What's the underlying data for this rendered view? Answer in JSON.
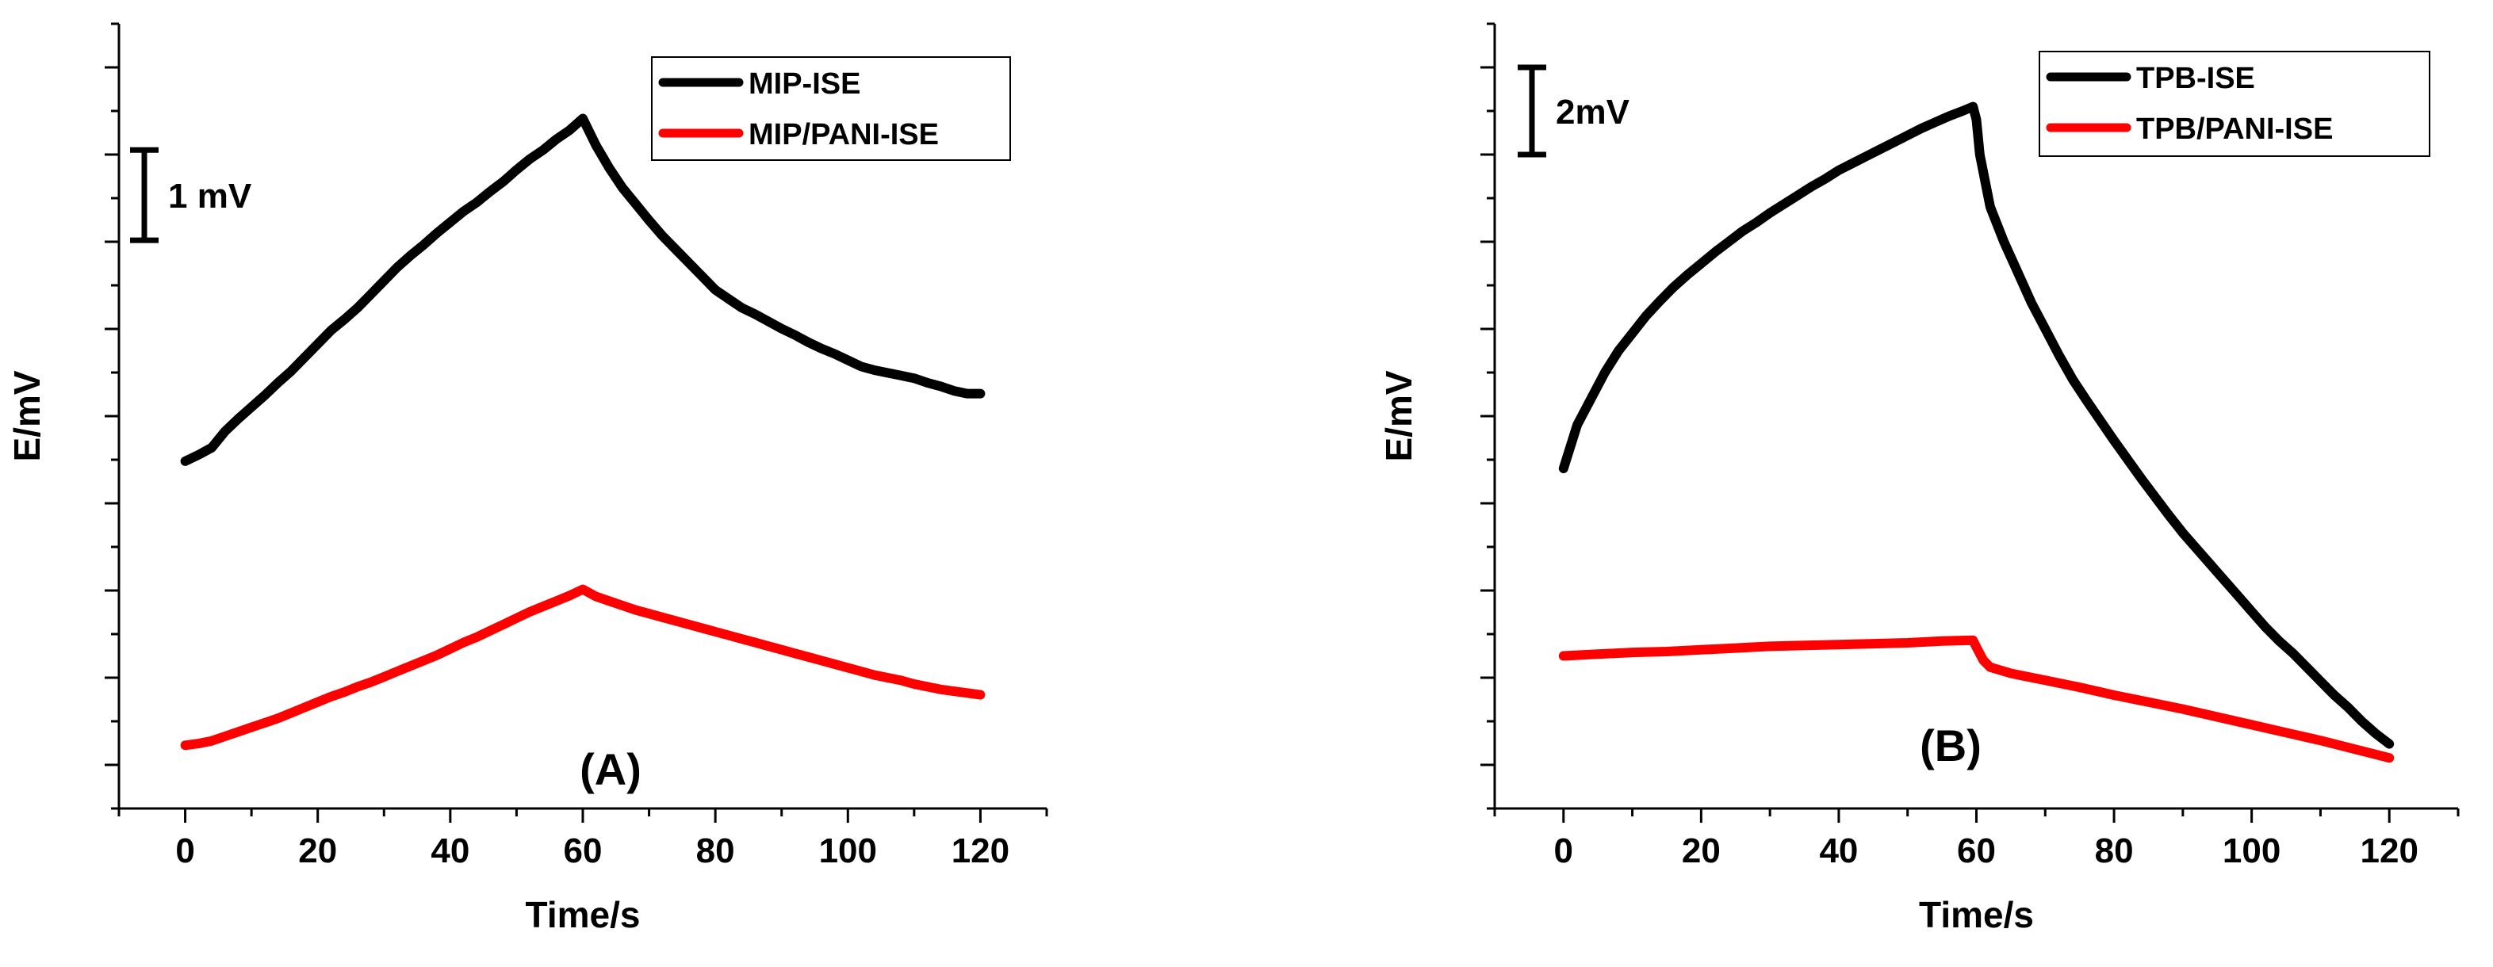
{
  "chart_data": [
    {
      "type": "line",
      "panel_label": "(A)",
      "xlabel": "Time/s",
      "ylabel": "E/mV",
      "xlim": [
        -10,
        130
      ],
      "xticks": [
        0,
        20,
        40,
        60,
        80,
        100,
        120
      ],
      "ylim": [
        -0.5,
        8.2
      ],
      "y_tick_labels_shown": false,
      "scale_bar": {
        "label": "1 mV",
        "from": 5.8,
        "to": 6.8
      },
      "legend_position": "top-right",
      "series": [
        {
          "name": "MIP-ISE",
          "color": "#000000",
          "x": [
            0,
            2,
            4,
            6,
            8,
            10,
            12,
            14,
            16,
            18,
            20,
            22,
            24,
            26,
            28,
            30,
            32,
            34,
            36,
            38,
            40,
            42,
            44,
            46,
            48,
            50,
            52,
            54,
            56,
            58,
            60,
            62,
            64,
            66,
            68,
            70,
            72,
            74,
            76,
            78,
            80,
            82,
            84,
            86,
            88,
            90,
            92,
            94,
            96,
            98,
            100,
            102,
            104,
            106,
            108,
            110,
            112,
            114,
            116,
            118,
            120
          ],
          "values": [
            3.35,
            3.42,
            3.5,
            3.68,
            3.82,
            3.95,
            4.08,
            4.22,
            4.35,
            4.5,
            4.65,
            4.8,
            4.92,
            5.05,
            5.2,
            5.35,
            5.5,
            5.63,
            5.75,
            5.88,
            6.0,
            6.12,
            6.22,
            6.34,
            6.45,
            6.58,
            6.7,
            6.8,
            6.92,
            7.02,
            7.15,
            6.85,
            6.6,
            6.38,
            6.2,
            6.02,
            5.85,
            5.7,
            5.55,
            5.4,
            5.25,
            5.15,
            5.05,
            4.98,
            4.9,
            4.82,
            4.75,
            4.67,
            4.6,
            4.54,
            4.47,
            4.4,
            4.36,
            4.33,
            4.3,
            4.27,
            4.22,
            4.18,
            4.13,
            4.1,
            4.1
          ]
        },
        {
          "name": "MIP/PANI-ISE",
          "color": "#ff0000",
          "x": [
            0,
            2,
            4,
            6,
            8,
            10,
            12,
            14,
            16,
            18,
            20,
            22,
            24,
            26,
            28,
            30,
            32,
            34,
            36,
            38,
            40,
            42,
            44,
            46,
            48,
            50,
            52,
            54,
            56,
            58,
            60,
            62,
            64,
            66,
            68,
            70,
            72,
            74,
            76,
            78,
            80,
            82,
            84,
            86,
            88,
            90,
            92,
            94,
            96,
            98,
            100,
            102,
            104,
            106,
            108,
            110,
            112,
            114,
            116,
            118,
            120
          ],
          "values": [
            0.2,
            0.22,
            0.25,
            0.3,
            0.35,
            0.4,
            0.45,
            0.5,
            0.56,
            0.62,
            0.68,
            0.74,
            0.79,
            0.85,
            0.9,
            0.96,
            1.02,
            1.08,
            1.14,
            1.2,
            1.27,
            1.34,
            1.4,
            1.47,
            1.54,
            1.61,
            1.68,
            1.74,
            1.8,
            1.86,
            1.93,
            1.85,
            1.8,
            1.75,
            1.7,
            1.66,
            1.62,
            1.58,
            1.54,
            1.5,
            1.46,
            1.42,
            1.38,
            1.34,
            1.3,
            1.26,
            1.22,
            1.18,
            1.14,
            1.1,
            1.06,
            1.02,
            0.98,
            0.95,
            0.92,
            0.88,
            0.85,
            0.82,
            0.8,
            0.78,
            0.76
          ]
        }
      ]
    },
    {
      "type": "line",
      "panel_label": "(B)",
      "xlabel": "Time/s",
      "ylabel": "E/mV",
      "xlim": [
        -10,
        130
      ],
      "xticks": [
        0,
        20,
        40,
        60,
        80,
        100,
        120
      ],
      "ylim": [
        -0.5,
        8.5
      ],
      "y_tick_labels_shown": false,
      "scale_bar": {
        "label": "2mV",
        "from": 7.0,
        "to": 8.0
      },
      "legend_position": "top-right",
      "series": [
        {
          "name": "TPB-ISE",
          "color": "#000000",
          "x": [
            0,
            2,
            4,
            6,
            8,
            10,
            12,
            14,
            16,
            18,
            20,
            22,
            24,
            26,
            28,
            30,
            32,
            34,
            36,
            38,
            40,
            42,
            44,
            46,
            48,
            50,
            52,
            54,
            56,
            58,
            59.5,
            60,
            60.5,
            62,
            64,
            66,
            68,
            70,
            72,
            74,
            76,
            78,
            80,
            82,
            84,
            86,
            88,
            90,
            92,
            94,
            96,
            98,
            100,
            102,
            104,
            106,
            108,
            110,
            112,
            114,
            116,
            118,
            120
          ],
          "values": [
            3.4,
            3.9,
            4.2,
            4.5,
            4.75,
            4.95,
            5.15,
            5.32,
            5.48,
            5.62,
            5.75,
            5.88,
            6.0,
            6.12,
            6.22,
            6.33,
            6.43,
            6.53,
            6.63,
            6.72,
            6.82,
            6.9,
            6.98,
            7.06,
            7.14,
            7.22,
            7.3,
            7.37,
            7.44,
            7.5,
            7.55,
            7.4,
            7.0,
            6.4,
            6.0,
            5.65,
            5.3,
            5.0,
            4.7,
            4.42,
            4.18,
            3.95,
            3.72,
            3.5,
            3.28,
            3.07,
            2.86,
            2.66,
            2.48,
            2.3,
            2.12,
            1.94,
            1.76,
            1.58,
            1.42,
            1.28,
            1.12,
            0.96,
            0.8,
            0.66,
            0.5,
            0.36,
            0.24
          ]
        },
        {
          "name": "TPB/PANI-ISE",
          "color": "#ff0000",
          "x": [
            0,
            5,
            10,
            15,
            20,
            25,
            30,
            35,
            40,
            45,
            50,
            55,
            59.5,
            60,
            61,
            62,
            65,
            70,
            75,
            80,
            85,
            90,
            95,
            100,
            105,
            110,
            115,
            120
          ],
          "values": [
            1.25,
            1.27,
            1.29,
            1.3,
            1.32,
            1.34,
            1.36,
            1.37,
            1.38,
            1.39,
            1.4,
            1.42,
            1.43,
            1.35,
            1.2,
            1.12,
            1.05,
            0.97,
            0.89,
            0.8,
            0.72,
            0.64,
            0.55,
            0.46,
            0.37,
            0.28,
            0.18,
            0.08
          ]
        }
      ]
    }
  ]
}
